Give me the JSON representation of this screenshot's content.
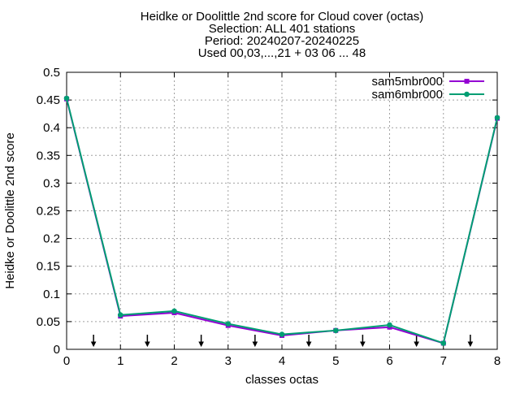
{
  "chart_data": {
    "type": "line",
    "title_lines": [
      "Heidke or Doolittle 2nd score  for Cloud cover (octas)",
      "Selection: ALL    401 stations",
      "Period: 20240207-20240225",
      "Used 00,03,...,21 + 03 06 ... 48"
    ],
    "xlabel": "classes octas",
    "ylabel": "Heidke or Doolittle 2nd score",
    "xlim": [
      0,
      8
    ],
    "ylim": [
      0,
      0.5
    ],
    "x_ticks": [
      0,
      1,
      2,
      3,
      4,
      5,
      6,
      7,
      8
    ],
    "x_tick_labels": [
      "0",
      "1",
      "2",
      "3",
      "4",
      "5",
      "6",
      "7",
      "8"
    ],
    "y_ticks": [
      0,
      0.05,
      0.1,
      0.15,
      0.2,
      0.25,
      0.3,
      0.35,
      0.4,
      0.45,
      0.5
    ],
    "y_tick_labels": [
      "0",
      "0.05",
      "0.1",
      "0.15",
      "0.2",
      "0.25",
      "0.3",
      "0.35",
      "0.4",
      "0.45",
      "0.5"
    ],
    "grid": true,
    "legend_position": "top-right",
    "x": [
      0,
      1,
      2,
      3,
      4,
      5,
      6,
      7,
      8
    ],
    "series": [
      {
        "name": "sam5mbr000",
        "color": "#9400d3",
        "marker": "square",
        "values": [
          0.452,
          0.06,
          0.066,
          0.043,
          0.025,
          0.034,
          0.04,
          0.011,
          0.417
        ]
      },
      {
        "name": "sam6mbr000",
        "color": "#009e73",
        "marker": "circle",
        "values": [
          0.453,
          0.062,
          0.069,
          0.046,
          0.027,
          0.034,
          0.044,
          0.011,
          0.418
        ]
      }
    ],
    "annotations": {
      "type": "arrows",
      "description_icon": "down-arrow-icon",
      "x_positions": [
        0.5,
        1.5,
        2.5,
        3.5,
        4.5,
        5.5,
        6.5,
        7.5
      ]
    }
  }
}
